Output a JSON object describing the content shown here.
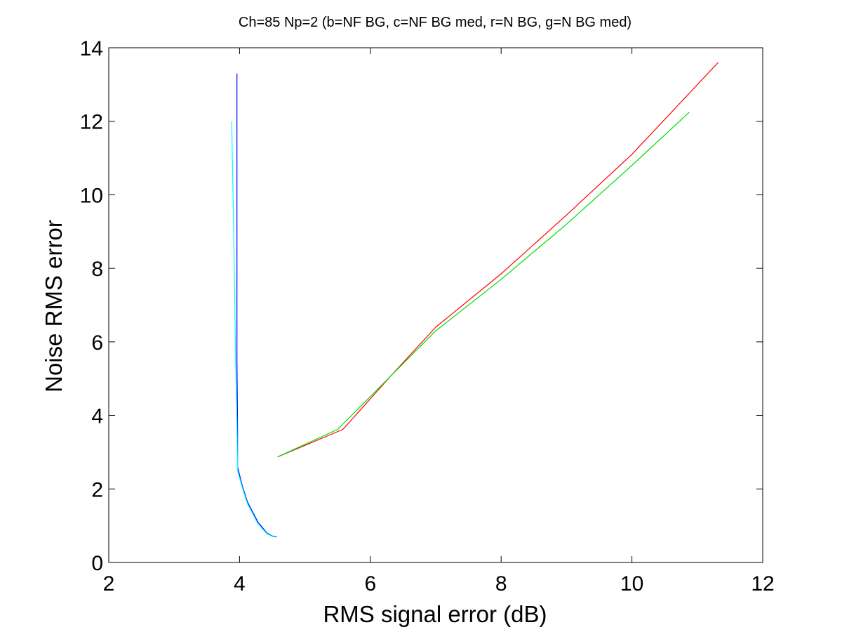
{
  "chart_data": {
    "type": "line",
    "title": "Ch=85 Np=2 (b=NF BG, c=NF BG med, r=N BG, g=N BG med)",
    "xlabel": "RMS signal error (dB)",
    "ylabel": "Noise RMS error",
    "xlim": [
      2,
      12
    ],
    "ylim": [
      0,
      14
    ],
    "xticks": [
      2,
      4,
      6,
      8,
      10,
      12
    ],
    "yticks": [
      0,
      2,
      4,
      6,
      8,
      10,
      12,
      14
    ],
    "grid": false,
    "series": [
      {
        "color": "#0000ff",
        "x": [
          3.96,
          3.96,
          3.96,
          3.96,
          3.97,
          3.97,
          4.04,
          4.12,
          4.28,
          4.42,
          4.5,
          4.57
        ],
        "y": [
          13.3,
          10.5,
          8.0,
          5.5,
          3.6,
          2.6,
          2.1,
          1.65,
          1.1,
          0.8,
          0.72,
          0.7
        ]
      },
      {
        "color": "#00ffff",
        "x": [
          3.88,
          3.9,
          3.92,
          3.94,
          3.96,
          3.97,
          4.04,
          4.12,
          4.28,
          4.42,
          4.5,
          4.56
        ],
        "y": [
          12.0,
          10.0,
          8.0,
          5.5,
          3.8,
          2.5,
          2.05,
          1.6,
          1.05,
          0.78,
          0.71,
          0.69
        ]
      },
      {
        "color": "#ff0000",
        "x": [
          4.58,
          5.58,
          6.3,
          7.0,
          8.0,
          9.0,
          10.0,
          11.32
        ],
        "y": [
          2.87,
          3.62,
          5.05,
          6.4,
          7.85,
          9.45,
          11.1,
          13.6
        ]
      },
      {
        "color": "#00dd00",
        "x": [
          4.58,
          5.5,
          6.3,
          7.0,
          8.0,
          9.0,
          10.0,
          10.88
        ],
        "y": [
          2.87,
          3.62,
          5.05,
          6.3,
          7.7,
          9.2,
          10.8,
          12.25
        ]
      }
    ]
  }
}
